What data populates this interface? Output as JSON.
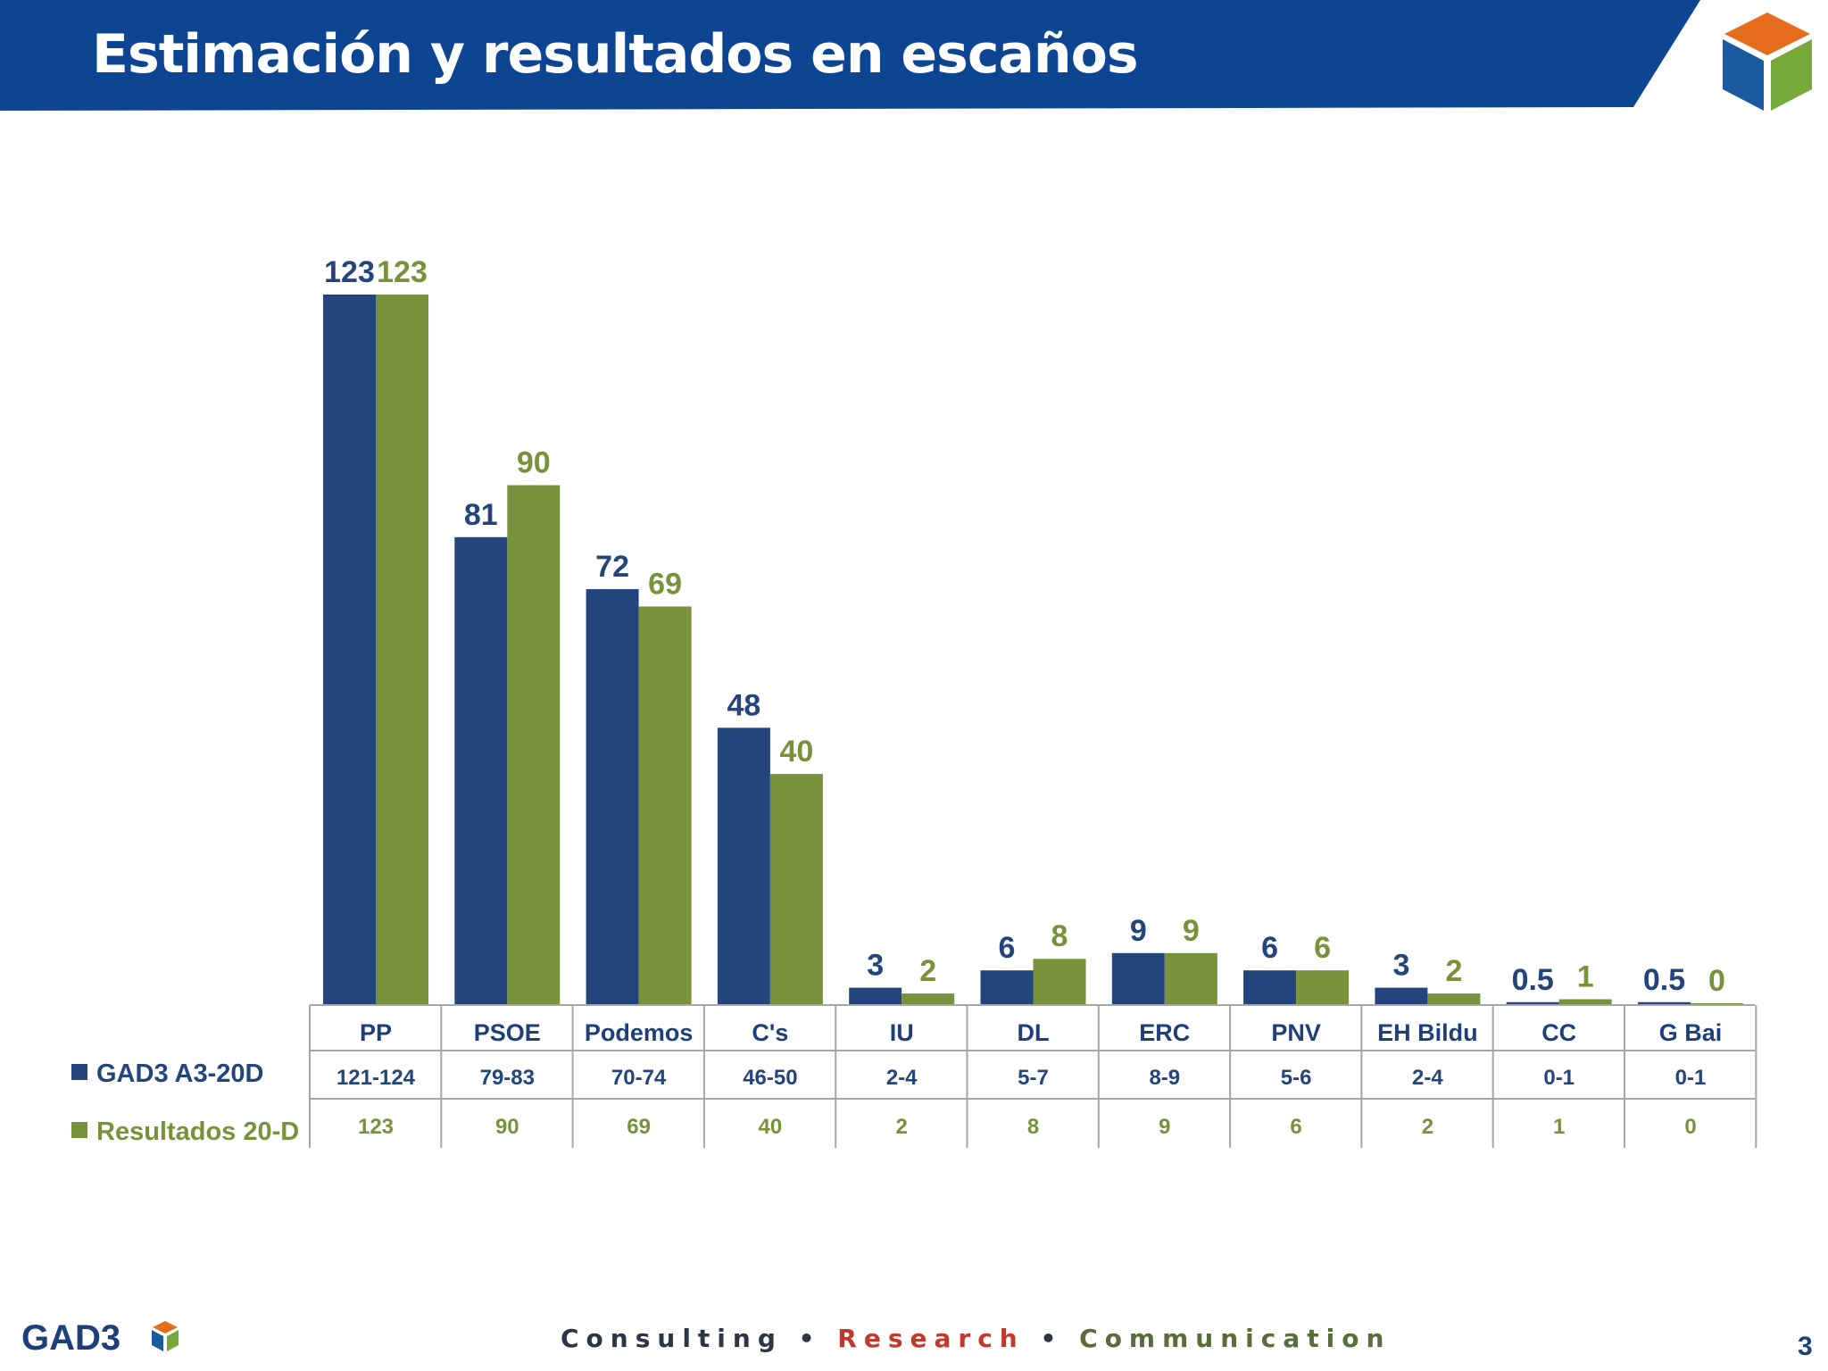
{
  "header": {
    "title": "Estimación y resultados en escaños"
  },
  "colors": {
    "header_bar": "#0d4592",
    "series_gad3": "#24457c",
    "series_results": "#77923b",
    "cube_top": "#e46c1a",
    "cube_left": "#1c5aa0",
    "cube_right": "#77a83a"
  },
  "chart_data": {
    "type": "bar",
    "title": "",
    "xlabel": "",
    "ylabel": "",
    "ylim": [
      0,
      123
    ],
    "grid": false,
    "categories": [
      "PP",
      "PSOE",
      "Podemos",
      "C's",
      "IU",
      "DL",
      "ERC",
      "PNV",
      "EH Bildu",
      "CC",
      "G Bai"
    ],
    "series": [
      {
        "name": "GAD3 A3-20D",
        "values": [
          123,
          81,
          72,
          48,
          3,
          6,
          9,
          6,
          3,
          0.5,
          0.5
        ],
        "labels": [
          "123",
          "81",
          "72",
          "48",
          "3",
          "6",
          "9",
          "6",
          "3",
          "0.5",
          "0.5"
        ],
        "table_values": [
          "121-124",
          "79-83",
          "70-74",
          "46-50",
          "2-4",
          "5-7",
          "8-9",
          "5-6",
          "2-4",
          "0-1",
          "0-1"
        ]
      },
      {
        "name": "Resultados 20-D",
        "values": [
          123,
          90,
          69,
          40,
          2,
          8,
          9,
          6,
          2,
          1,
          0
        ],
        "labels": [
          "123",
          "90",
          "69",
          "40",
          "2",
          "8",
          "9",
          "6",
          "2",
          "1",
          "0"
        ],
        "table_values": [
          "123",
          "90",
          "69",
          "40",
          "2",
          "8",
          "9",
          "6",
          "2",
          "1",
          "0"
        ]
      }
    ]
  },
  "footer": {
    "logo_text": "GAD3",
    "tagline_1": "Consulting",
    "separator": "•",
    "tagline_2": "Research",
    "tagline_3": "Communication",
    "page_number": "3"
  }
}
